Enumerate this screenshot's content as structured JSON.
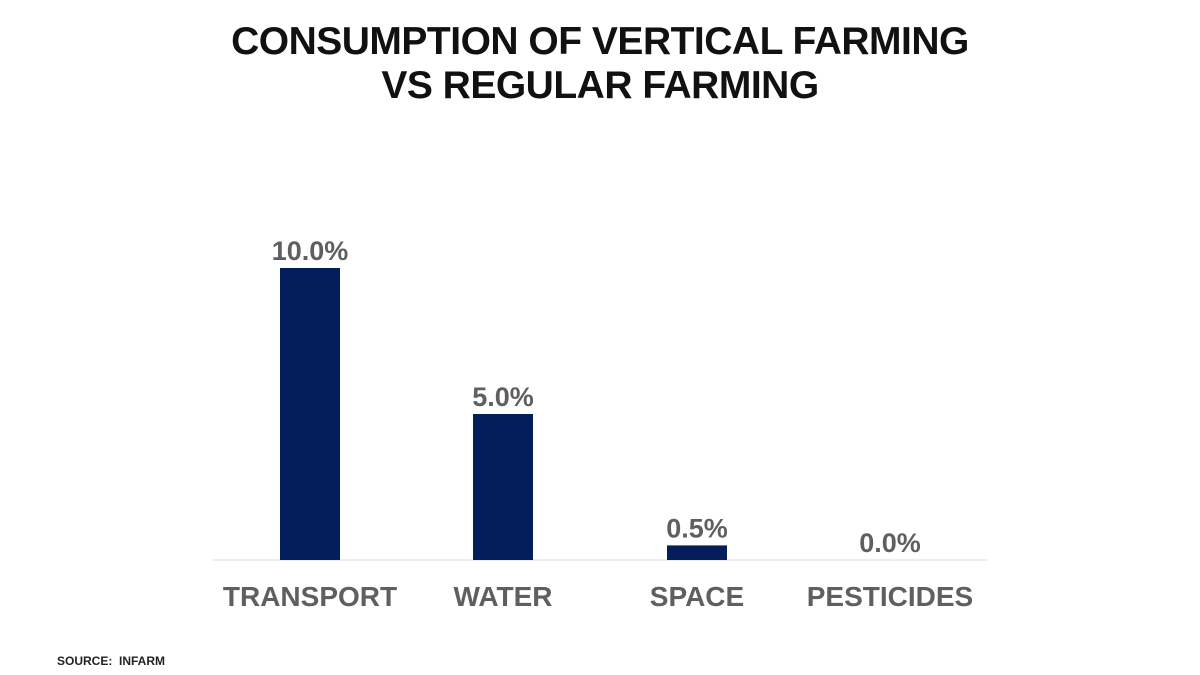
{
  "chart_data": {
    "type": "bar",
    "title_lines": [
      "CONSUMPTION OF VERTICAL FARMING",
      "VS REGULAR FARMING"
    ],
    "categories": [
      "TRANSPORT",
      "WATER",
      "SPACE",
      "PESTICIDES"
    ],
    "values": [
      10.0,
      5.0,
      0.5,
      0.0
    ],
    "data_labels": [
      "10.0%",
      "5.0%",
      "0.5%",
      "0.0%"
    ],
    "ylim": [
      0,
      10
    ],
    "grid": false,
    "legend": "none",
    "bar_color": "#041E5C",
    "label_color": "#5F5F5F",
    "axis_color": "#D9D9D9"
  },
  "source": "SOURCE:  INFARM"
}
